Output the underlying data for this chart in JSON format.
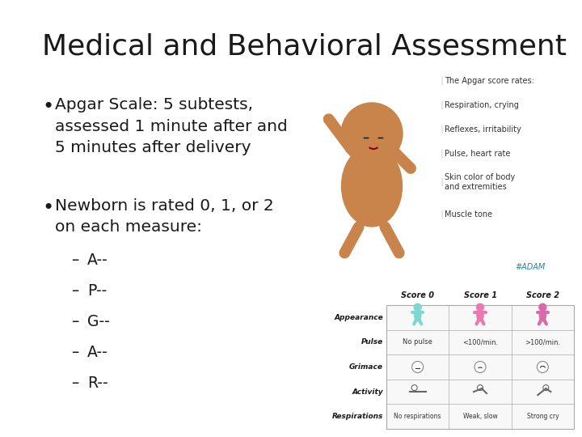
{
  "background_color": "#ffffff",
  "title": "Medical and Behavioral Assessment",
  "title_fontsize": 26,
  "title_color": "#1a1a1a",
  "bullet1": "Apgar Scale: 5 subtests,\nassessed 1 minute after and\n5 minutes after delivery",
  "bullet2": "Newborn is rated 0, 1, or 2\non each measure:",
  "sub_bullets": [
    "A--",
    "P--",
    "G--",
    "A--",
    "R--"
  ],
  "bullet_fontsize": 14.5,
  "sub_bullet_fontsize": 13.5,
  "text_color": "#1a1a1a",
  "apgar_labels": [
    "The Apgar score rates:",
    "Respiration, crying",
    "Reflexes, irritability",
    "Pulse, heart rate",
    "Skin color of body\nand extremities",
    "Muscle tone"
  ],
  "table_rows": [
    "Appearance",
    "Pulse",
    "Grimace",
    "Activity",
    "Respirations"
  ],
  "table_col_labels": [
    "Score 0",
    "Score 1",
    "Score 2"
  ],
  "pulse_values": [
    "No pulse",
    "<100/min.",
    ">100/min."
  ],
  "resp_values": [
    "No respirations",
    "Weak, slow",
    "Strong cry"
  ],
  "color_score0": "#7dd8d4",
  "color_score1": "#e87ab0",
  "color_score2": "#d96baa",
  "adam_text": "#ADAM",
  "table_border": "#aaaaaa",
  "table_bg": "#f8f8f8"
}
